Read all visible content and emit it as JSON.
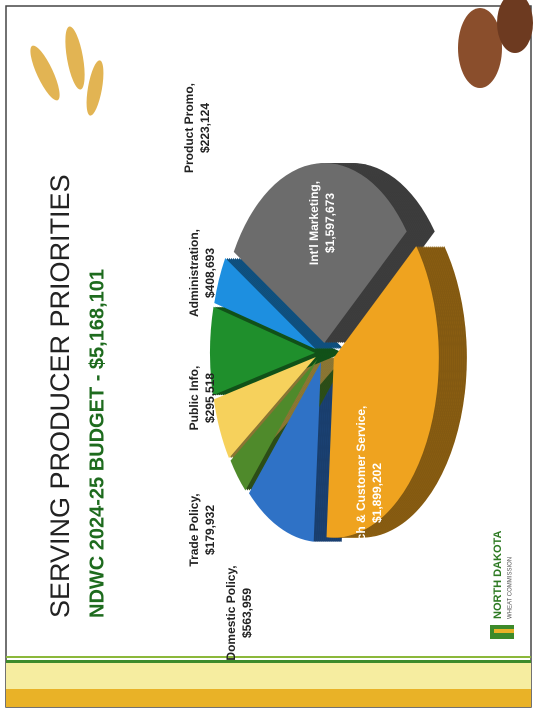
{
  "chart_data": {
    "type": "pie",
    "title": "SERVING PRODUCER PRIORITIES",
    "subtitle": "NDWC 2024-25 BUDGET - $5,168,101",
    "categories": [
      "Domestic Policy,",
      "Trade Policy,",
      "Public Info,",
      "Administration,",
      "Product Promo,",
      "Int'l Marketing,",
      "Research & Customer Service,"
    ],
    "values": [
      563959,
      179932,
      295518,
      408693,
      223124,
      1597673,
      1899202
    ],
    "value_labels": [
      "$563,959",
      "$179,932",
      "$295,518",
      "$408,693",
      "$223,124",
      "$1,597,673",
      "$1,899,202"
    ],
    "colors": [
      "#2f72c6",
      "#4f8a2b",
      "#f6d15c",
      "#1f8f2c",
      "#1d8fe0",
      "#6c6c6c",
      "#efa31f"
    ]
  },
  "logo": {
    "line1": "NORTH DAKOTA",
    "line2": "WHEAT COMMISSION"
  }
}
